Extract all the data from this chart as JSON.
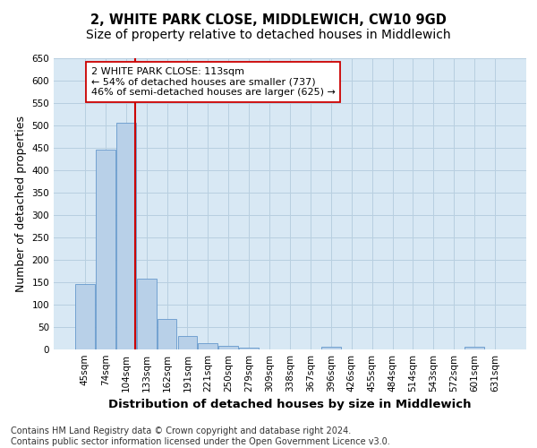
{
  "title": "2, WHITE PARK CLOSE, MIDDLEWICH, CW10 9GD",
  "subtitle": "Size of property relative to detached houses in Middlewich",
  "xlabel": "Distribution of detached houses by size in Middlewich",
  "ylabel": "Number of detached properties",
  "footnote": "Contains HM Land Registry data © Crown copyright and database right 2024.\nContains public sector information licensed under the Open Government Licence v3.0.",
  "bar_labels": [
    "45sqm",
    "74sqm",
    "104sqm",
    "133sqm",
    "162sqm",
    "191sqm",
    "221sqm",
    "250sqm",
    "279sqm",
    "309sqm",
    "338sqm",
    "367sqm",
    "396sqm",
    "426sqm",
    "455sqm",
    "484sqm",
    "514sqm",
    "543sqm",
    "572sqm",
    "601sqm",
    "631sqm"
  ],
  "bar_values": [
    147,
    447,
    507,
    158,
    68,
    30,
    14,
    9,
    5,
    0,
    0,
    0,
    6,
    0,
    0,
    0,
    0,
    0,
    0,
    6,
    0
  ],
  "bar_color": "#b8d0e8",
  "bar_edgecolor": "#6699cc",
  "vline_x_index": 2.47,
  "vline_color": "#cc0000",
  "annotation_text": "2 WHITE PARK CLOSE: 113sqm\n← 54% of detached houses are smaller (737)\n46% of semi-detached houses are larger (625) →",
  "ylim": [
    0,
    650
  ],
  "yticks": [
    0,
    50,
    100,
    150,
    200,
    250,
    300,
    350,
    400,
    450,
    500,
    550,
    600,
    650
  ],
  "background_color": "#ffffff",
  "plot_bg_color": "#d8e8f4",
  "grid_color": "#b8cfe0",
  "title_fontsize": 10.5,
  "axis_label_fontsize": 9,
  "tick_fontsize": 7.5,
  "annotation_fontsize": 8,
  "footnote_fontsize": 7
}
